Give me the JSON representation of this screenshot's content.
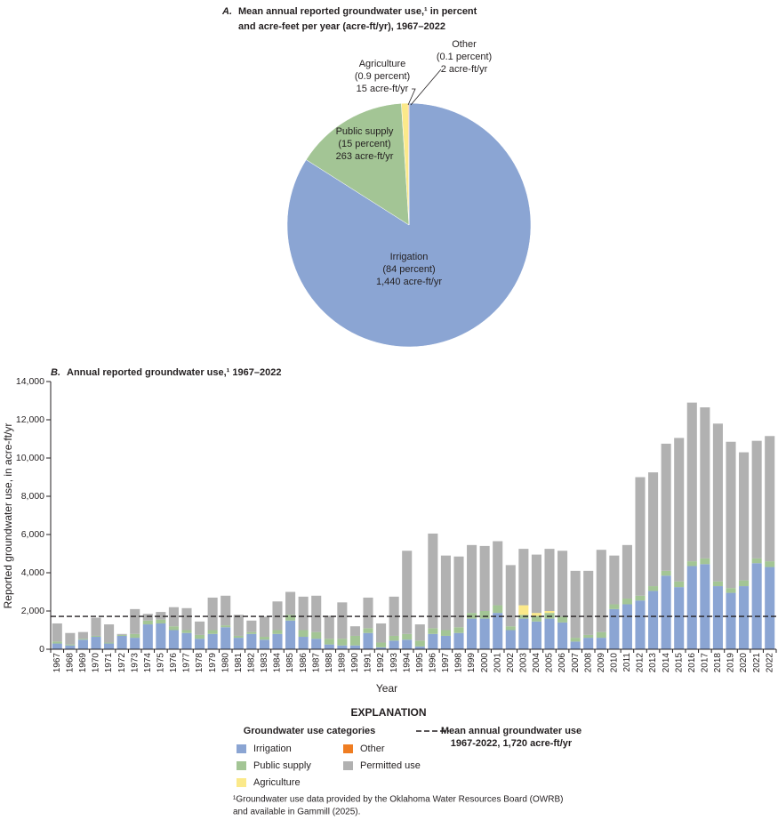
{
  "chart_data": [
    {
      "type": "pie",
      "panel": "A.",
      "title_lines": [
        "Mean annual reported groundwater use,¹ in percent",
        "and acre-feet per year (acre-ft/yr), 1967–2022"
      ],
      "categories": [
        "Irrigation",
        "Public supply",
        "Agriculture",
        "Other"
      ],
      "values": [
        84,
        15,
        0.9,
        0.1
      ],
      "value_labels": [
        "(84 percent)",
        "(15 percent)",
        "(0.9 percent)",
        "(0.1 percent)"
      ],
      "acre_ft_labels": [
        "1,440 acre-ft/yr",
        "263 acre-ft/yr",
        "15 acre-ft/yr",
        "2 acre-ft/yr"
      ],
      "colors": [
        "#8ba5d3",
        "#a3c595",
        "#fbe98a",
        "#ef7d22"
      ]
    },
    {
      "type": "stacked-bar",
      "panel": "B.",
      "title": "Annual reported groundwater use,¹ 1967–2022",
      "x_label": "Year",
      "y_label": "Reported groundwater use, in acre-ft/yr",
      "categories": [
        "1967",
        "1968",
        "1969",
        "1970",
        "1971",
        "1972",
        "1973",
        "1974",
        "1975",
        "1976",
        "1977",
        "1978",
        "1979",
        "1980",
        "1981",
        "1982",
        "1983",
        "1984",
        "1985",
        "1986",
        "1987",
        "1988",
        "1989",
        "1990",
        "1991",
        "1992",
        "1993",
        "1994",
        "1995",
        "1996",
        "1997",
        "1998",
        "1999",
        "2000",
        "2001",
        "2002",
        "2003",
        "2004",
        "2005",
        "2006",
        "2007",
        "2008",
        "2009",
        "2010",
        "2011",
        "2012",
        "2013",
        "2014",
        "2015",
        "2016",
        "2017",
        "2018",
        "2019",
        "2020",
        "2021",
        "2022"
      ],
      "series": [
        {
          "name": "Irrigation",
          "color": "#8ba5d3",
          "values": [
            300,
            200,
            500,
            650,
            300,
            700,
            600,
            1300,
            1350,
            1000,
            850,
            550,
            800,
            1150,
            600,
            800,
            500,
            800,
            1500,
            650,
            550,
            250,
            200,
            200,
            850,
            100,
            450,
            500,
            150,
            800,
            700,
            850,
            1600,
            1600,
            1900,
            1000,
            1600,
            1450,
            1600,
            1400,
            400,
            600,
            600,
            2100,
            2350,
            2550,
            3050,
            3850,
            3250,
            4350,
            4450,
            3300,
            2950,
            3300,
            4500,
            4300
          ]
        },
        {
          "name": "Public supply",
          "color": "#a3c595",
          "values": [
            100,
            50,
            50,
            50,
            50,
            50,
            200,
            200,
            200,
            200,
            150,
            200,
            200,
            100,
            100,
            100,
            150,
            200,
            300,
            350,
            350,
            300,
            350,
            500,
            250,
            250,
            250,
            300,
            300,
            300,
            300,
            300,
            300,
            400,
            400,
            200,
            200,
            300,
            300,
            300,
            200,
            150,
            300,
            250,
            300,
            250,
            250,
            250,
            300,
            250,
            300,
            250,
            250,
            300,
            250,
            300
          ]
        },
        {
          "name": "Agriculture",
          "color": "#fbe98a",
          "values": [
            0,
            0,
            0,
            0,
            0,
            0,
            0,
            0,
            0,
            0,
            0,
            0,
            0,
            0,
            0,
            0,
            0,
            0,
            0,
            0,
            0,
            0,
            0,
            0,
            0,
            0,
            0,
            0,
            0,
            0,
            0,
            0,
            0,
            0,
            0,
            0,
            500,
            150,
            100,
            0,
            0,
            0,
            0,
            0,
            0,
            0,
            0,
            0,
            0,
            0,
            0,
            0,
            0,
            0,
            0,
            0
          ]
        },
        {
          "name": "Other",
          "color": "#ef7d22",
          "values": [
            0,
            0,
            0,
            0,
            0,
            0,
            0,
            0,
            0,
            0,
            0,
            0,
            0,
            0,
            0,
            0,
            0,
            0,
            0,
            0,
            0,
            0,
            0,
            0,
            0,
            0,
            0,
            0,
            0,
            0,
            0,
            0,
            0,
            0,
            0,
            0,
            0,
            0,
            0,
            0,
            0,
            0,
            0,
            0,
            0,
            0,
            0,
            0,
            0,
            0,
            0,
            0,
            0,
            0,
            0,
            0
          ]
        },
        {
          "name": "Permitted use",
          "color": "#b1b1b1",
          "values": [
            950,
            600,
            350,
            950,
            950,
            50,
            1300,
            350,
            400,
            1000,
            1150,
            700,
            1700,
            1550,
            1100,
            600,
            1050,
            1500,
            1200,
            1750,
            1900,
            1200,
            1900,
            500,
            1600,
            1000,
            2050,
            4350,
            850,
            4950,
            3900,
            3700,
            3550,
            3400,
            3350,
            3200,
            2950,
            3050,
            3250,
            3450,
            3500,
            3350,
            4300,
            2550,
            2800,
            6200,
            5950,
            6650,
            7500,
            8300,
            7900,
            8250,
            7650,
            6700,
            6150,
            6550
          ]
        }
      ],
      "ylim": [
        0,
        14000
      ],
      "yticks": [
        0,
        {
          "value": 2000,
          "label": "2,000"
        },
        {
          "value": 4000,
          "label": "4,000"
        },
        {
          "value": 6000,
          "label": "6,000"
        },
        {
          "value": 8000,
          "label": "8,000"
        },
        {
          "value": 10000,
          "label": "10,000"
        },
        {
          "value": 12000,
          "label": "12,000"
        },
        {
          "value": 14000,
          "label": "14,000"
        }
      ],
      "reference_line": {
        "value": 1720,
        "label_lines": [
          "Mean annual groundwater use",
          "1967-2022, 1,720 acre-ft/yr"
        ]
      },
      "legend_title": "EXPLANATION",
      "legend_subtitle": "Groundwater use categories",
      "footnote_lines": [
        "¹Groundwater use data provided by the Oklahoma Water Resources Board (OWRB)",
        "and available in Gammill (2025)."
      ]
    }
  ]
}
